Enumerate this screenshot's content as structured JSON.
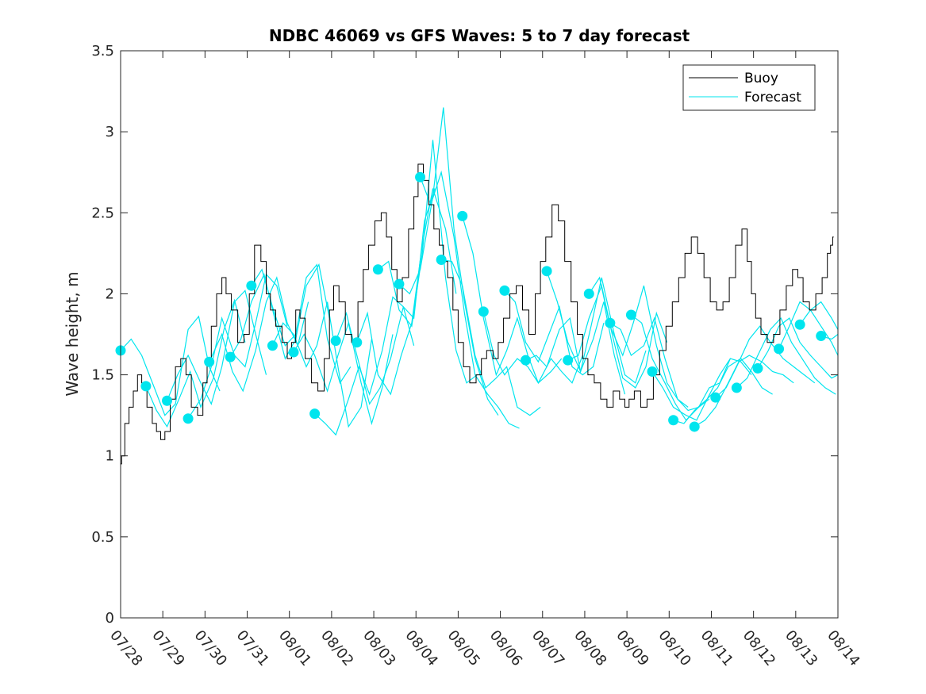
{
  "chart_data": {
    "type": "line",
    "title": "NDBC 46069 vs GFS Waves: 5 to 7 day forecast",
    "xlabel": "",
    "ylabel": "Wave height, m",
    "ylim": [
      0,
      3.5
    ],
    "yticks": [
      0,
      0.5,
      1,
      1.5,
      2,
      2.5,
      3,
      3.5
    ],
    "ytick_labels": [
      "0",
      "0.5",
      "1",
      "1.5",
      "2",
      "2.5",
      "3",
      "3.5"
    ],
    "xlim": [
      "07/28",
      "08/14"
    ],
    "xtick_labels": [
      "07/28",
      "07/29",
      "07/30",
      "07/31",
      "08/01",
      "08/02",
      "08/03",
      "08/04",
      "08/05",
      "08/06",
      "08/07",
      "08/08",
      "08/09",
      "08/10",
      "08/11",
      "08/12",
      "08/13",
      "08/14"
    ],
    "grid": false,
    "legend": {
      "position": "top-right",
      "entries": [
        "Buoy",
        "Forecast"
      ]
    },
    "colors": {
      "buoy": "#000000",
      "forecast": "#00e5ee",
      "axis": "#262626"
    },
    "buoy": {
      "name": "Buoy",
      "day": [
        0.0,
        0.05,
        0.15,
        0.25,
        0.35,
        0.45,
        0.55,
        0.7,
        0.8,
        0.9,
        1.0,
        1.1,
        1.25,
        1.35,
        1.5,
        1.6,
        1.75,
        1.9,
        2.0,
        2.1,
        2.2,
        2.35,
        2.45,
        2.55,
        2.7,
        2.85,
        3.0,
        3.1,
        3.25,
        3.4,
        3.5,
        3.6,
        3.75,
        3.9,
        4.0,
        4.1,
        4.2,
        4.3,
        4.45,
        4.6,
        4.75,
        4.9,
        5.0,
        5.1,
        5.25,
        5.4,
        5.55,
        5.7,
        5.8,
        5.95,
        6.1,
        6.25,
        6.35,
        6.5,
        6.6,
        6.75,
        6.9,
        7.0,
        7.1,
        7.25,
        7.35,
        7.5,
        7.6,
        7.7,
        7.8,
        7.95,
        8.05,
        8.2,
        8.35,
        8.5,
        8.6,
        8.75,
        8.9,
        9.0,
        9.15,
        9.3,
        9.45,
        9.6,
        9.75,
        9.9,
        10.0,
        10.15,
        10.3,
        10.45,
        10.6,
        10.75,
        10.9,
        11.0,
        11.15,
        11.3,
        11.45,
        11.6,
        11.75,
        11.9,
        12.0,
        12.1,
        12.25,
        12.4,
        12.55,
        12.7,
        12.85,
        13.0,
        13.15,
        13.3,
        13.45,
        13.6,
        13.75,
        13.9,
        14.05,
        14.2,
        14.35,
        14.5,
        14.65,
        14.8,
        14.9,
        15.0,
        15.1,
        15.25,
        15.4,
        15.55,
        15.7,
        15.85,
        16.0,
        16.1,
        16.25,
        16.4,
        16.55,
        16.7,
        16.8,
        16.85,
        16.9
      ],
      "values": [
        0.95,
        1.0,
        1.2,
        1.3,
        1.4,
        1.5,
        1.45,
        1.3,
        1.2,
        1.15,
        1.1,
        1.15,
        1.35,
        1.55,
        1.6,
        1.5,
        1.3,
        1.25,
        1.45,
        1.6,
        1.8,
        2.0,
        2.1,
        2.0,
        1.9,
        1.7,
        1.75,
        2.0,
        2.3,
        2.2,
        2.0,
        1.9,
        1.8,
        1.7,
        1.6,
        1.7,
        1.9,
        1.85,
        1.6,
        1.45,
        1.4,
        1.6,
        1.9,
        2.05,
        1.95,
        1.75,
        1.7,
        1.95,
        2.15,
        2.3,
        2.45,
        2.5,
        2.35,
        2.15,
        1.95,
        2.1,
        2.4,
        2.6,
        2.8,
        2.7,
        2.55,
        2.4,
        2.3,
        2.2,
        2.1,
        1.9,
        1.7,
        1.55,
        1.45,
        1.5,
        1.6,
        1.65,
        1.6,
        1.7,
        1.85,
        2.0,
        2.05,
        1.9,
        1.75,
        2.0,
        2.2,
        2.35,
        2.55,
        2.45,
        2.2,
        1.95,
        1.75,
        1.6,
        1.5,
        1.45,
        1.35,
        1.3,
        1.4,
        1.35,
        1.3,
        1.35,
        1.4,
        1.3,
        1.35,
        1.5,
        1.65,
        1.8,
        1.95,
        2.1,
        2.25,
        2.35,
        2.25,
        2.1,
        1.95,
        1.9,
        1.95,
        2.1,
        2.3,
        2.4,
        2.2,
        2.0,
        1.85,
        1.75,
        1.7,
        1.75,
        1.9,
        2.05,
        2.15,
        2.1,
        1.95,
        1.9,
        2.0,
        2.1,
        2.25,
        2.3,
        2.35
      ]
    },
    "forecast_runs": [
      {
        "day": [
          0.0,
          0.25,
          0.5,
          0.8,
          1.05,
          1.3,
          1.6,
          1.85,
          2.1,
          2.35
        ],
        "values": [
          1.65,
          1.72,
          1.62,
          1.42,
          1.25,
          1.32,
          1.78,
          1.86,
          1.55,
          1.4
        ]
      },
      {
        "day": [
          0.6,
          0.85,
          1.1,
          1.4,
          1.65,
          1.9,
          2.2,
          2.45,
          2.7,
          2.95
        ],
        "values": [
          1.43,
          1.28,
          1.18,
          1.36,
          1.52,
          1.3,
          1.48,
          1.78,
          1.96,
          1.7
        ]
      },
      {
        "day": [
          1.1,
          1.35,
          1.6,
          1.9,
          2.15,
          2.4,
          2.7,
          2.95,
          3.2,
          3.45
        ],
        "values": [
          1.34,
          1.5,
          1.62,
          1.45,
          1.32,
          1.55,
          1.95,
          2.02,
          1.75,
          1.5
        ]
      },
      {
        "day": [
          1.6,
          1.9,
          2.15,
          2.4,
          2.7,
          2.95,
          3.2,
          3.45,
          3.7,
          3.95
        ],
        "values": [
          1.23,
          1.35,
          1.55,
          1.85,
          1.62,
          1.55,
          1.82,
          2.12,
          2.05,
          1.8
        ]
      },
      {
        "day": [
          2.1,
          2.4,
          2.65,
          2.9,
          3.2,
          3.45,
          3.7,
          3.95,
          4.2,
          4.45
        ],
        "values": [
          1.58,
          1.75,
          1.52,
          1.4,
          1.65,
          1.95,
          2.1,
          1.82,
          1.68,
          1.95
        ]
      },
      {
        "day": [
          2.6,
          2.85,
          3.1,
          3.4,
          3.65,
          3.9,
          4.15,
          4.4,
          4.7,
          4.95
        ],
        "values": [
          1.61,
          1.72,
          1.95,
          2.12,
          1.85,
          1.6,
          1.72,
          2.05,
          2.18,
          1.85
        ]
      },
      {
        "day": [
          3.1,
          3.35,
          3.6,
          3.9,
          4.15,
          4.4,
          4.65,
          4.9,
          5.2,
          5.45
        ],
        "values": [
          2.05,
          2.15,
          1.92,
          1.68,
          1.75,
          2.1,
          2.18,
          1.72,
          1.45,
          1.55
        ]
      },
      {
        "day": [
          3.6,
          3.85,
          4.1,
          4.4,
          4.65,
          4.9,
          5.15,
          5.4,
          5.7,
          5.95
        ],
        "values": [
          1.68,
          1.82,
          1.75,
          1.55,
          1.68,
          1.95,
          1.55,
          1.18,
          1.3,
          1.72
        ]
      },
      {
        "day": [
          4.1,
          4.35,
          4.6,
          4.9,
          5.15,
          5.4,
          5.7,
          5.95,
          6.2,
          6.45
        ],
        "values": [
          1.64,
          1.75,
          1.62,
          1.4,
          1.62,
          1.82,
          1.45,
          1.2,
          1.42,
          1.75
        ]
      },
      {
        "day": [
          4.6,
          4.85,
          5.1,
          5.4,
          5.65,
          5.9,
          6.2,
          6.45,
          6.7,
          6.95
        ],
        "values": [
          1.26,
          1.2,
          1.13,
          1.35,
          1.55,
          1.38,
          1.65,
          1.98,
          1.92,
          1.68
        ]
      },
      {
        "day": [
          5.1,
          5.35,
          5.6,
          5.9,
          6.15,
          6.4,
          6.7,
          6.95,
          7.2,
          7.45
        ],
        "values": [
          1.71,
          1.88,
          1.62,
          1.32,
          1.42,
          1.6,
          1.92,
          1.85,
          2.45,
          2.65
        ]
      },
      {
        "day": [
          5.6,
          5.85,
          6.1,
          6.4,
          6.65,
          6.9,
          7.15,
          7.4,
          7.7,
          7.95
        ],
        "values": [
          1.7,
          1.88,
          1.5,
          1.38,
          1.62,
          1.82,
          2.3,
          2.65,
          2.4,
          2.0
        ]
      },
      {
        "day": [
          6.1,
          6.35,
          6.6,
          6.9,
          7.15,
          7.4,
          7.7,
          7.95,
          8.2,
          8.45
        ],
        "values": [
          2.15,
          2.2,
          1.9,
          1.8,
          2.25,
          2.95,
          2.1,
          1.65,
          1.45,
          1.5
        ]
      },
      {
        "day": [
          6.6,
          6.85,
          7.1,
          7.4,
          7.65,
          7.9,
          8.15,
          8.4,
          8.7,
          8.95
        ],
        "values": [
          2.06,
          2.0,
          2.15,
          2.6,
          3.15,
          2.4,
          1.95,
          1.6,
          1.35,
          1.25
        ]
      },
      {
        "day": [
          7.1,
          7.35,
          7.6,
          7.9,
          8.15,
          8.4,
          8.7,
          8.95,
          9.2,
          9.45
        ],
        "values": [
          2.72,
          2.55,
          2.75,
          2.35,
          1.88,
          1.5,
          1.38,
          1.3,
          1.2,
          1.17
        ]
      },
      {
        "day": [
          7.6,
          7.85,
          8.1,
          8.4,
          8.65,
          8.9,
          9.15,
          9.4,
          9.7,
          9.95
        ],
        "values": [
          2.21,
          2.2,
          2.05,
          1.62,
          1.42,
          1.48,
          1.55,
          1.3,
          1.25,
          1.3
        ]
      },
      {
        "day": [
          8.1,
          8.35,
          8.6,
          8.9,
          9.15,
          9.4,
          9.65,
          9.9,
          10.2,
          10.45
        ],
        "values": [
          2.48,
          2.25,
          1.85,
          1.5,
          1.65,
          1.85,
          1.62,
          1.45,
          1.52,
          1.6
        ]
      },
      {
        "day": [
          8.6,
          8.85,
          9.1,
          9.4,
          9.65,
          9.9,
          10.2,
          10.45,
          10.7,
          10.95
        ],
        "values": [
          1.89,
          1.62,
          1.5,
          1.6,
          1.55,
          1.45,
          1.6,
          1.52,
          1.45,
          1.62
        ]
      },
      {
        "day": [
          9.1,
          9.35,
          9.6,
          9.9,
          10.15,
          10.4,
          10.7,
          10.95,
          11.2,
          11.45
        ],
        "values": [
          2.02,
          1.95,
          1.7,
          1.58,
          1.75,
          1.92,
          1.55,
          1.5,
          1.55,
          1.82
        ]
      },
      {
        "day": [
          9.6,
          9.85,
          10.1,
          10.4,
          10.65,
          10.9,
          11.2,
          11.45,
          11.7,
          11.95
        ],
        "values": [
          1.59,
          1.62,
          1.55,
          1.78,
          1.85,
          1.52,
          1.72,
          1.95,
          1.62,
          1.38
        ]
      },
      {
        "day": [
          10.1,
          10.35,
          10.6,
          10.9,
          11.15,
          11.4,
          11.7,
          11.95,
          12.2,
          12.45
        ],
        "values": [
          2.14,
          1.95,
          1.7,
          1.52,
          1.8,
          2.1,
          1.75,
          1.5,
          1.45,
          1.65
        ]
      },
      {
        "day": [
          10.6,
          10.85,
          11.1,
          11.4,
          11.65,
          11.9,
          12.2,
          12.45,
          12.7,
          12.95
        ],
        "values": [
          1.59,
          1.62,
          1.85,
          2.05,
          1.75,
          1.48,
          1.42,
          1.55,
          1.88,
          1.7
        ]
      },
      {
        "day": [
          11.1,
          11.35,
          11.6,
          11.9,
          12.15,
          12.4,
          12.7,
          12.95,
          13.2,
          13.45
        ],
        "values": [
          2.0,
          2.1,
          1.8,
          1.62,
          1.82,
          2.05,
          1.68,
          1.45,
          1.35,
          1.3
        ]
      },
      {
        "day": [
          11.6,
          11.85,
          12.1,
          12.4,
          12.65,
          12.9,
          13.2,
          13.45,
          13.7,
          13.95
        ],
        "values": [
          1.82,
          1.78,
          1.62,
          1.68,
          1.85,
          1.6,
          1.35,
          1.28,
          1.3,
          1.35
        ]
      },
      {
        "day": [
          12.1,
          12.35,
          12.6,
          12.9,
          13.15,
          13.4,
          13.7,
          13.95,
          14.2,
          14.45
        ],
        "values": [
          1.87,
          1.82,
          1.6,
          1.45,
          1.32,
          1.22,
          1.3,
          1.42,
          1.45,
          1.6
        ]
      },
      {
        "day": [
          12.6,
          12.85,
          13.1,
          13.4,
          13.65,
          13.9,
          14.2,
          14.45,
          14.7,
          14.95
        ],
        "values": [
          1.52,
          1.42,
          1.3,
          1.25,
          1.22,
          1.35,
          1.5,
          1.6,
          1.58,
          1.5
        ]
      },
      {
        "day": [
          13.1,
          13.35,
          13.6,
          13.9,
          14.15,
          14.4,
          14.7,
          14.95,
          15.2,
          15.45
        ],
        "values": [
          1.22,
          1.2,
          1.28,
          1.35,
          1.42,
          1.55,
          1.6,
          1.52,
          1.42,
          1.38
        ]
      },
      {
        "day": [
          13.6,
          13.85,
          14.1,
          14.4,
          14.65,
          14.9,
          15.2,
          15.45,
          15.7,
          15.95
        ],
        "values": [
          1.18,
          1.22,
          1.3,
          1.45,
          1.58,
          1.62,
          1.58,
          1.52,
          1.5,
          1.45
        ]
      },
      {
        "day": [
          14.1,
          14.35,
          14.6,
          14.9,
          15.15,
          15.4,
          15.7,
          15.95,
          16.2,
          16.45
        ],
        "values": [
          1.36,
          1.42,
          1.55,
          1.72,
          1.8,
          1.7,
          1.6,
          1.55,
          1.5,
          1.45
        ]
      },
      {
        "day": [
          14.6,
          14.85,
          15.1,
          15.4,
          15.65,
          15.9,
          16.2,
          16.45,
          16.7,
          16.95
        ],
        "values": [
          1.42,
          1.48,
          1.62,
          1.78,
          1.85,
          1.7,
          1.58,
          1.48,
          1.42,
          1.38
        ]
      },
      {
        "day": [
          15.1,
          15.35,
          15.6,
          15.85,
          16.1,
          16.35,
          16.6,
          16.85,
          17.0
        ],
        "values": [
          1.54,
          1.65,
          1.8,
          1.85,
          1.7,
          1.62,
          1.55,
          1.48,
          1.5
        ]
      },
      {
        "day": [
          15.6,
          15.85,
          16.1,
          16.35,
          16.6,
          16.85,
          17.0
        ],
        "values": [
          1.66,
          1.8,
          1.95,
          1.9,
          1.8,
          1.7,
          1.62
        ]
      },
      {
        "day": [
          16.1,
          16.35,
          16.6,
          16.85,
          17.0
        ],
        "values": [
          1.81,
          1.9,
          1.95,
          1.85,
          1.78
        ]
      },
      {
        "day": [
          16.6,
          16.85,
          17.0
        ],
        "values": [
          1.74,
          1.72,
          1.75
        ]
      }
    ]
  }
}
